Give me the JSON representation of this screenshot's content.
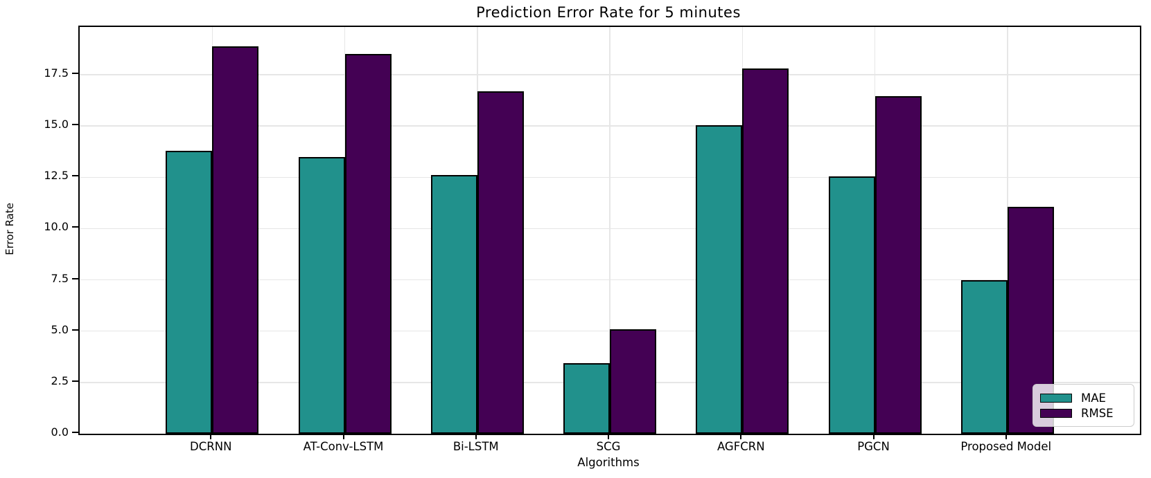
{
  "figure": {
    "background": "#ffffff"
  },
  "chart_data": {
    "type": "bar",
    "title": "Prediction Error Rate for 5 minutes",
    "xlabel": "Algorithms",
    "ylabel": "Error Rate",
    "categories": [
      "DCRNN",
      "AT-Conv-LSTM",
      "Bi-LSTM",
      "SCG",
      "AGFCRN",
      "PGCN",
      "Proposed Model"
    ],
    "series": [
      {
        "name": "MAE",
        "color": "#21918c",
        "values": [
          13.8,
          13.5,
          12.6,
          3.45,
          15.05,
          12.55,
          7.5
        ]
      },
      {
        "name": "RMSE",
        "color": "#440154",
        "values": [
          18.9,
          18.5,
          16.7,
          5.1,
          17.8,
          16.45,
          11.05
        ]
      }
    ],
    "ylim": [
      0,
      19.83
    ],
    "yticks": [
      0.0,
      2.5,
      5.0,
      7.5,
      10.0,
      12.5,
      15.0,
      17.5
    ],
    "ytick_labels": [
      "0.0",
      "2.5",
      "5.0",
      "7.5",
      "10.0",
      "12.5",
      "15.0",
      "17.5"
    ],
    "grid": true,
    "bar_edge_color": "#000000",
    "legend_position": "lower right"
  },
  "legend": {
    "entries": [
      {
        "label": "MAE",
        "color": "#21918c"
      },
      {
        "label": "RMSE",
        "color": "#440154"
      }
    ]
  }
}
